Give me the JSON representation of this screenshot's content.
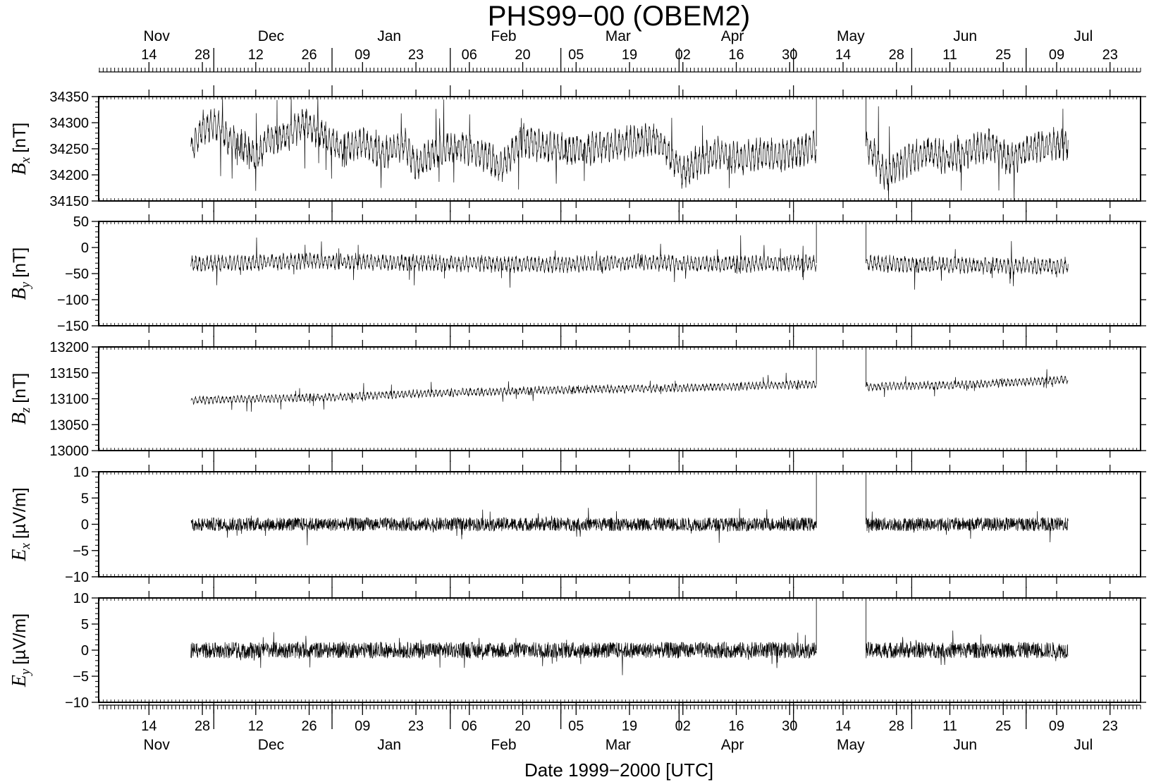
{
  "chart_data": {
    "type": "line",
    "title": "PHS99−00 (OBEM2)",
    "xlabel": "Date 1999−2000 [UTC]",
    "x_axis": {
      "start": "1999-11-01",
      "end": "2000-07-31",
      "date_ticks": [
        {
          "date": "1999-11-14",
          "label": "14"
        },
        {
          "date": "1999-11-28",
          "label": "28"
        },
        {
          "date": "1999-12-12",
          "label": "12"
        },
        {
          "date": "1999-12-26",
          "label": "26"
        },
        {
          "date": "2000-01-09",
          "label": "09"
        },
        {
          "date": "2000-01-23",
          "label": "23"
        },
        {
          "date": "2000-02-06",
          "label": "06"
        },
        {
          "date": "2000-02-20",
          "label": "20"
        },
        {
          "date": "2000-03-05",
          "label": "05"
        },
        {
          "date": "2000-03-19",
          "label": "19"
        },
        {
          "date": "2000-04-02",
          "label": "02"
        },
        {
          "date": "2000-04-16",
          "label": "16"
        },
        {
          "date": "2000-04-30",
          "label": "30"
        },
        {
          "date": "2000-05-14",
          "label": "14"
        },
        {
          "date": "2000-05-28",
          "label": "28"
        },
        {
          "date": "2000-06-11",
          "label": "11"
        },
        {
          "date": "2000-06-25",
          "label": "25"
        },
        {
          "date": "2000-07-09",
          "label": "09"
        },
        {
          "date": "2000-07-23",
          "label": "23"
        }
      ],
      "month_labels": [
        {
          "label": "Nov",
          "date": "1999-11-16"
        },
        {
          "label": "Dec",
          "date": "1999-12-16"
        },
        {
          "label": "Jan",
          "date": "2000-01-16"
        },
        {
          "label": "Feb",
          "date": "2000-02-15"
        },
        {
          "label": "Mar",
          "date": "2000-03-16"
        },
        {
          "label": "Apr",
          "date": "2000-04-15"
        },
        {
          "label": "May",
          "date": "2000-05-16"
        },
        {
          "label": "Jun",
          "date": "2000-06-15"
        },
        {
          "label": "Jul",
          "date": "2000-07-16"
        }
      ],
      "month_boundaries": [
        "1999-12-01",
        "2000-01-01",
        "2000-02-01",
        "2000-03-01",
        "2000-04-01",
        "2000-05-01",
        "2000-06-01",
        "2000-07-01"
      ]
    },
    "panels": [
      {
        "name": "Bx",
        "ylabel_var": "B",
        "ylabel_sub": "x",
        "ylabel_unit": "[nT]",
        "ylim": [
          34150,
          34350
        ],
        "yticks": [
          34150,
          34200,
          34250,
          34300,
          34350
        ],
        "ytick_labels": [
          "34150",
          "34200",
          "34250",
          "34300",
          "34350"
        ],
        "series": [
          {
            "date": "1999-11-25",
            "value": 34245
          },
          {
            "date": "1999-11-28",
            "value": 34290
          },
          {
            "date": "1999-12-01",
            "value": 34300
          },
          {
            "date": "1999-12-05",
            "value": 34268
          },
          {
            "date": "1999-12-10",
            "value": 34250
          },
          {
            "date": "1999-12-12",
            "value": 34232
          },
          {
            "date": "1999-12-15",
            "value": 34262
          },
          {
            "date": "1999-12-20",
            "value": 34275
          },
          {
            "date": "1999-12-25",
            "value": 34300
          },
          {
            "date": "1999-12-29",
            "value": 34280
          },
          {
            "date": "2000-01-01",
            "value": 34265
          },
          {
            "date": "2000-01-03",
            "value": 34248
          },
          {
            "date": "2000-01-09",
            "value": 34262
          },
          {
            "date": "2000-01-14",
            "value": 34238
          },
          {
            "date": "2000-01-20",
            "value": 34260
          },
          {
            "date": "2000-01-23",
            "value": 34215
          },
          {
            "date": "2000-01-28",
            "value": 34245
          },
          {
            "date": "2000-02-04",
            "value": 34255
          },
          {
            "date": "2000-02-11",
            "value": 34235
          },
          {
            "date": "2000-02-14",
            "value": 34210
          },
          {
            "date": "2000-02-20",
            "value": 34268
          },
          {
            "date": "2000-02-26",
            "value": 34252
          },
          {
            "date": "2000-03-05",
            "value": 34245
          },
          {
            "date": "2000-03-12",
            "value": 34255
          },
          {
            "date": "2000-03-19",
            "value": 34262
          },
          {
            "date": "2000-03-26",
            "value": 34270
          },
          {
            "date": "2000-03-31",
            "value": 34225
          },
          {
            "date": "2000-04-02",
            "value": 34205
          },
          {
            "date": "2000-04-07",
            "value": 34230
          },
          {
            "date": "2000-04-12",
            "value": 34245
          },
          {
            "date": "2000-04-16",
            "value": 34230
          },
          {
            "date": "2000-04-22",
            "value": 34240
          },
          {
            "date": "2000-04-28",
            "value": 34235
          },
          {
            "date": "2000-05-03",
            "value": 34248
          },
          {
            "date": "2000-05-07",
            "value": 34255
          },
          {
            "date": "2000-05-20",
            "value": 34255
          },
          {
            "date": "2000-05-22",
            "value": 34240
          },
          {
            "date": "2000-05-25",
            "value": 34200
          },
          {
            "date": "2000-05-30",
            "value": 34225
          },
          {
            "date": "2000-06-05",
            "value": 34245
          },
          {
            "date": "2000-06-11",
            "value": 34230
          },
          {
            "date": "2000-06-16",
            "value": 34245
          },
          {
            "date": "2000-06-22",
            "value": 34260
          },
          {
            "date": "2000-06-26",
            "value": 34228
          },
          {
            "date": "2000-07-02",
            "value": 34250
          },
          {
            "date": "2000-07-08",
            "value": 34258
          },
          {
            "date": "2000-07-12",
            "value": 34262
          }
        ],
        "spread": 28
      },
      {
        "name": "By",
        "ylabel_var": "B",
        "ylabel_sub": "y",
        "ylabel_unit": "[nT]",
        "ylim": [
          -150,
          50
        ],
        "yticks": [
          -150,
          -100,
          -50,
          0,
          50
        ],
        "ytick_labels": [
          "−150",
          "−100",
          "−50",
          "0",
          "50"
        ],
        "series": [
          {
            "date": "1999-11-25",
            "value": -32
          },
          {
            "date": "1999-12-26",
            "value": -26
          },
          {
            "date": "2000-01-30",
            "value": -30
          },
          {
            "date": "2000-02-29",
            "value": -33
          },
          {
            "date": "2000-03-20",
            "value": -28
          },
          {
            "date": "2000-04-10",
            "value": -32
          },
          {
            "date": "2000-05-07",
            "value": -30
          },
          {
            "date": "2000-05-20",
            "value": -30
          },
          {
            "date": "2000-06-15",
            "value": -35
          },
          {
            "date": "2000-07-12",
            "value": -35
          }
        ],
        "spread": 14
      },
      {
        "name": "Bz",
        "ylabel_var": "B",
        "ylabel_sub": "z",
        "ylabel_unit": "[nT]",
        "ylim": [
          13000,
          13200
        ],
        "yticks": [
          13000,
          13050,
          13100,
          13150,
          13200
        ],
        "ytick_labels": [
          "13000",
          "13050",
          "13100",
          "13150",
          "13200"
        ],
        "series": [
          {
            "date": "1999-11-25",
            "value": 13097
          },
          {
            "date": "2000-01-01",
            "value": 13103
          },
          {
            "date": "2000-02-01",
            "value": 13112
          },
          {
            "date": "2000-03-01",
            "value": 13117
          },
          {
            "date": "2000-04-01",
            "value": 13121
          },
          {
            "date": "2000-05-07",
            "value": 13128
          },
          {
            "date": "2000-05-20",
            "value": 13123
          },
          {
            "date": "2000-06-15",
            "value": 13127
          },
          {
            "date": "2000-07-12",
            "value": 13137
          }
        ],
        "spread": 7
      },
      {
        "name": "Ex",
        "ylabel_var": "E",
        "ylabel_sub": "x",
        "ylabel_unit": "[µV/m]",
        "ylim": [
          -10,
          10
        ],
        "yticks": [
          -10,
          -5,
          0,
          5,
          10
        ],
        "ytick_labels": [
          "−10",
          "−5",
          "0",
          "5",
          "10"
        ],
        "series": [
          {
            "date": "1999-11-25",
            "value": 0
          },
          {
            "date": "2000-05-07",
            "value": 0
          },
          {
            "date": "2000-05-20",
            "value": 0
          },
          {
            "date": "2000-07-12",
            "value": 0
          }
        ],
        "spread": 1.0
      },
      {
        "name": "Ey",
        "ylabel_var": "E",
        "ylabel_sub": "y",
        "ylabel_unit": "[µV/m]",
        "ylim": [
          -10,
          10
        ],
        "yticks": [
          -10,
          -5,
          0,
          5,
          10
        ],
        "ytick_labels": [
          "−10",
          "−5",
          "0",
          "5",
          "10"
        ],
        "series": [
          {
            "date": "1999-11-25",
            "value": 0
          },
          {
            "date": "2000-05-07",
            "value": 0
          },
          {
            "date": "2000-05-20",
            "value": 0
          },
          {
            "date": "2000-07-12",
            "value": 0
          }
        ],
        "spread": 1.2
      }
    ],
    "data_gap": {
      "start": "2000-05-07",
      "end": "2000-05-20"
    },
    "line_color": "#000000",
    "grid": false,
    "legend": "none"
  }
}
